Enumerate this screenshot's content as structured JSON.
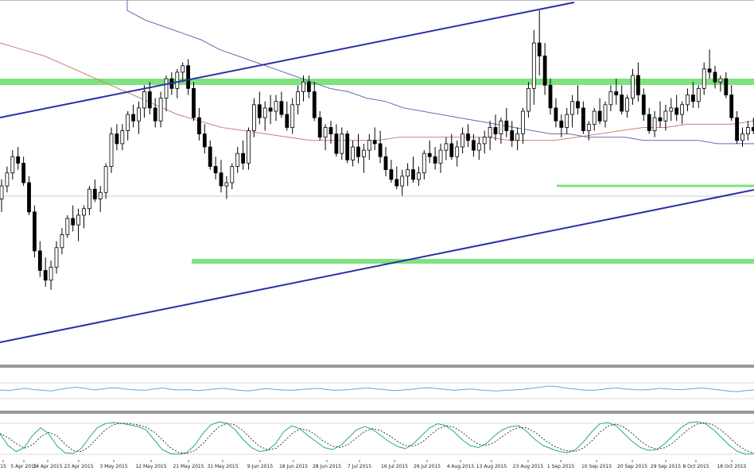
{
  "chart_data": {
    "type": "candlestick",
    "title": "",
    "grid": false,
    "price_range": [
      -10,
      100
    ],
    "colors": {
      "up_candle": "#ffffff",
      "down_candle": "#000000",
      "candle_outline": "#000000",
      "channel_lines": "#2b2fa8",
      "support_resistance": "#7ee27e",
      "moving_average_1": "#c9827a",
      "moving_average_2": "#6a6ab4",
      "oscillator_1": "#5aa8e0",
      "stochastic_main": "#2aa59a",
      "stochastic_signal": "#111111",
      "panel_separator": "#9a9a9a"
    },
    "dates": [
      "15",
      "5 Apr 2015",
      "14 Apr 2015",
      "23 Apr 2015",
      "3 May 2015",
      "12 May 2015",
      "21 May 2015",
      "31 May 2015",
      "9 Jun 2015",
      "18 Jun 2015",
      "28 Jun 2015",
      "7 Jul 2015",
      "16 Jul 2015",
      "26 Jul 2015",
      "4 Aug 2015",
      "13 Aug 2015",
      "23 Aug 2015",
      "1 Sep 2015",
      "10 Sep 2015",
      "20 Sep 2015",
      "29 Sep 2015",
      "8 Oct 2015",
      "18 Oct 2015"
    ],
    "candles": [
      [
        40,
        46,
        36,
        44
      ],
      [
        44,
        50,
        42,
        48
      ],
      [
        48,
        55,
        46,
        53
      ],
      [
        53,
        56,
        49,
        51
      ],
      [
        51,
        53,
        44,
        45
      ],
      [
        45,
        47,
        35,
        36
      ],
      [
        36,
        38,
        22,
        24
      ],
      [
        24,
        27,
        16,
        18
      ],
      [
        18,
        22,
        13,
        15
      ],
      [
        15,
        21,
        12,
        19
      ],
      [
        19,
        27,
        17,
        25
      ],
      [
        25,
        31,
        23,
        29
      ],
      [
        29,
        35,
        28,
        34
      ],
      [
        34,
        38,
        30,
        32
      ],
      [
        32,
        37,
        27,
        35
      ],
      [
        35,
        38,
        31,
        37
      ],
      [
        37,
        44,
        35,
        43
      ],
      [
        43,
        46,
        39,
        40
      ],
      [
        40,
        44,
        36,
        42
      ],
      [
        42,
        51,
        40,
        50
      ],
      [
        50,
        62,
        48,
        60
      ],
      [
        60,
        63,
        55,
        57
      ],
      [
        57,
        63,
        55,
        61
      ],
      [
        61,
        67,
        58,
        66
      ],
      [
        66,
        69,
        62,
        64
      ],
      [
        64,
        70,
        60,
        68
      ],
      [
        68,
        75,
        65,
        73
      ],
      [
        73,
        76,
        66,
        68
      ],
      [
        68,
        71,
        62,
        64
      ],
      [
        64,
        73,
        62,
        71
      ],
      [
        71,
        78,
        67,
        77
      ],
      [
        77,
        79,
        72,
        74
      ],
      [
        74,
        80,
        71,
        79
      ],
      [
        79,
        82,
        76,
        81
      ],
      [
        81,
        83,
        72,
        74
      ],
      [
        74,
        76,
        64,
        65
      ],
      [
        65,
        68,
        58,
        60
      ],
      [
        60,
        63,
        54,
        56
      ],
      [
        56,
        58,
        49,
        50
      ],
      [
        50,
        53,
        46,
        48
      ],
      [
        48,
        52,
        42,
        44
      ],
      [
        44,
        47,
        40,
        45
      ],
      [
        45,
        51,
        43,
        50
      ],
      [
        50,
        56,
        48,
        54
      ],
      [
        54,
        58,
        49,
        51
      ],
      [
        51,
        62,
        49,
        61
      ],
      [
        61,
        71,
        59,
        69
      ],
      [
        69,
        73,
        63,
        65
      ],
      [
        65,
        70,
        61,
        68
      ],
      [
        68,
        72,
        63,
        67
      ],
      [
        67,
        72,
        64,
        70
      ],
      [
        70,
        73,
        65,
        66
      ],
      [
        66,
        70,
        61,
        62
      ],
      [
        62,
        71,
        60,
        69
      ],
      [
        69,
        75,
        66,
        73
      ],
      [
        73,
        78,
        70,
        76
      ],
      [
        76,
        78,
        71,
        73
      ],
      [
        73,
        76,
        64,
        65
      ],
      [
        65,
        67,
        58,
        59
      ],
      [
        59,
        63,
        55,
        62
      ],
      [
        62,
        64,
        57,
        60
      ],
      [
        60,
        63,
        53,
        54
      ],
      [
        54,
        62,
        52,
        60
      ],
      [
        60,
        61,
        51,
        52
      ],
      [
        52,
        58,
        50,
        56
      ],
      [
        56,
        60,
        51,
        53
      ],
      [
        53,
        57,
        48,
        55
      ],
      [
        55,
        60,
        52,
        58
      ],
      [
        58,
        62,
        55,
        57
      ],
      [
        57,
        61,
        51,
        53
      ],
      [
        53,
        56,
        47,
        49
      ],
      [
        49,
        52,
        45,
        46
      ],
      [
        46,
        50,
        43,
        44
      ],
      [
        44,
        49,
        41,
        47
      ],
      [
        47,
        51,
        44,
        49
      ],
      [
        49,
        53,
        45,
        46
      ],
      [
        46,
        50,
        44,
        48
      ],
      [
        48,
        55,
        46,
        54
      ],
      [
        54,
        58,
        51,
        53
      ],
      [
        53,
        56,
        49,
        51
      ],
      [
        51,
        57,
        48,
        55
      ],
      [
        55,
        59,
        52,
        57
      ],
      [
        57,
        60,
        52,
        53
      ],
      [
        53,
        58,
        50,
        56
      ],
      [
        56,
        62,
        54,
        60
      ],
      [
        60,
        63,
        56,
        58
      ],
      [
        58,
        60,
        53,
        55
      ],
      [
        55,
        59,
        52,
        57
      ],
      [
        57,
        61,
        54,
        59
      ],
      [
        59,
        64,
        55,
        62
      ],
      [
        62,
        66,
        58,
        60
      ],
      [
        60,
        65,
        57,
        64
      ],
      [
        64,
        68,
        59,
        61
      ],
      [
        61,
        64,
        56,
        58
      ],
      [
        58,
        62,
        55,
        60
      ],
      [
        60,
        68,
        57,
        67
      ],
      [
        67,
        76,
        65,
        74
      ],
      [
        74,
        92,
        69,
        88
      ],
      [
        88,
        98,
        78,
        84
      ],
      [
        84,
        88,
        72,
        75
      ],
      [
        75,
        77,
        66,
        68
      ],
      [
        68,
        71,
        62,
        64
      ],
      [
        64,
        66,
        59,
        62
      ],
      [
        62,
        68,
        60,
        66
      ],
      [
        66,
        72,
        62,
        70
      ],
      [
        70,
        75,
        66,
        68
      ],
      [
        68,
        70,
        60,
        61
      ],
      [
        61,
        64,
        58,
        63
      ],
      [
        63,
        68,
        61,
        67
      ],
      [
        67,
        71,
        63,
        64
      ],
      [
        64,
        70,
        62,
        69
      ],
      [
        69,
        75,
        67,
        73
      ],
      [
        73,
        77,
        69,
        72
      ],
      [
        72,
        75,
        66,
        67
      ],
      [
        67,
        72,
        65,
        71
      ],
      [
        71,
        80,
        69,
        78
      ],
      [
        78,
        82,
        70,
        72
      ],
      [
        72,
        74,
        64,
        66
      ],
      [
        66,
        68,
        60,
        61
      ],
      [
        61,
        67,
        59,
        65
      ],
      [
        65,
        70,
        62,
        64
      ],
      [
        64,
        69,
        61,
        67
      ],
      [
        67,
        71,
        64,
        68
      ],
      [
        68,
        72,
        64,
        66
      ],
      [
        66,
        70,
        63,
        69
      ],
      [
        69,
        74,
        67,
        72
      ],
      [
        72,
        76,
        68,
        70
      ],
      [
        70,
        75,
        68,
        74
      ],
      [
        74,
        82,
        72,
        80
      ],
      [
        80,
        86,
        77,
        79
      ],
      [
        79,
        81,
        74,
        76
      ],
      [
        76,
        78,
        73,
        77
      ],
      [
        77,
        79,
        71,
        72
      ],
      [
        72,
        75,
        64,
        65
      ],
      [
        65,
        67,
        57,
        58
      ],
      [
        58,
        62,
        56,
        60
      ],
      [
        60,
        64,
        58,
        62
      ],
      [
        62,
        65,
        60,
        61
      ]
    ],
    "moving_average_1": [
      88,
      86,
      84,
      81,
      78,
      75,
      72,
      69,
      66,
      64,
      62,
      61,
      60,
      59,
      58,
      58,
      58,
      58,
      59,
      59,
      59,
      59,
      59,
      58,
      58,
      58,
      59,
      60,
      61,
      62,
      62,
      63,
      63,
      63,
      64
    ],
    "moving_average_2": [
      98,
      95,
      93,
      91,
      89,
      86,
      84,
      82,
      80,
      78,
      76,
      74,
      73,
      71,
      70,
      68,
      67,
      66,
      65,
      64,
      63,
      62,
      61,
      60,
      60,
      59,
      59,
      59,
      58,
      58,
      58,
      58,
      57,
      57,
      57
    ],
    "oscillator_1": [
      50,
      48,
      52,
      55,
      51,
      49,
      47,
      52,
      56,
      58,
      54,
      50,
      53,
      57,
      55,
      52,
      50,
      49,
      53,
      56,
      52,
      50,
      51,
      48,
      50,
      53,
      55,
      52,
      49,
      47,
      51,
      54,
      52,
      50,
      49,
      51,
      53,
      55,
      52,
      49,
      50,
      52,
      54,
      56,
      53,
      51,
      48,
      50,
      52,
      55,
      57,
      54,
      52,
      49,
      51,
      53,
      50,
      48,
      47,
      49,
      50,
      52,
      55,
      58,
      62,
      60,
      56,
      53,
      50,
      49,
      51,
      54,
      56,
      53,
      51,
      50,
      52,
      55,
      53,
      51,
      52,
      54,
      56,
      53,
      50,
      47,
      45,
      48,
      50
    ],
    "stochastic_k": [
      60,
      30,
      15,
      25,
      55,
      75,
      60,
      30,
      12,
      10,
      22,
      50,
      75,
      85,
      88,
      86,
      82,
      78,
      70,
      45,
      20,
      10,
      8,
      12,
      30,
      60,
      82,
      90,
      86,
      70,
      45,
      25,
      15,
      18,
      35,
      65,
      80,
      72,
      55,
      40,
      25,
      20,
      30,
      50,
      70,
      78,
      70,
      55,
      40,
      28,
      22,
      35,
      55,
      75,
      85,
      80,
      65,
      45,
      30,
      25,
      35,
      55,
      70,
      78,
      80,
      65,
      45,
      30,
      22,
      15,
      12,
      20,
      40,
      65,
      85,
      88,
      80,
      60,
      40,
      25,
      18,
      20,
      35,
      55,
      75,
      88,
      90,
      85,
      70,
      50,
      30,
      15,
      8,
      10
    ]
  }
}
